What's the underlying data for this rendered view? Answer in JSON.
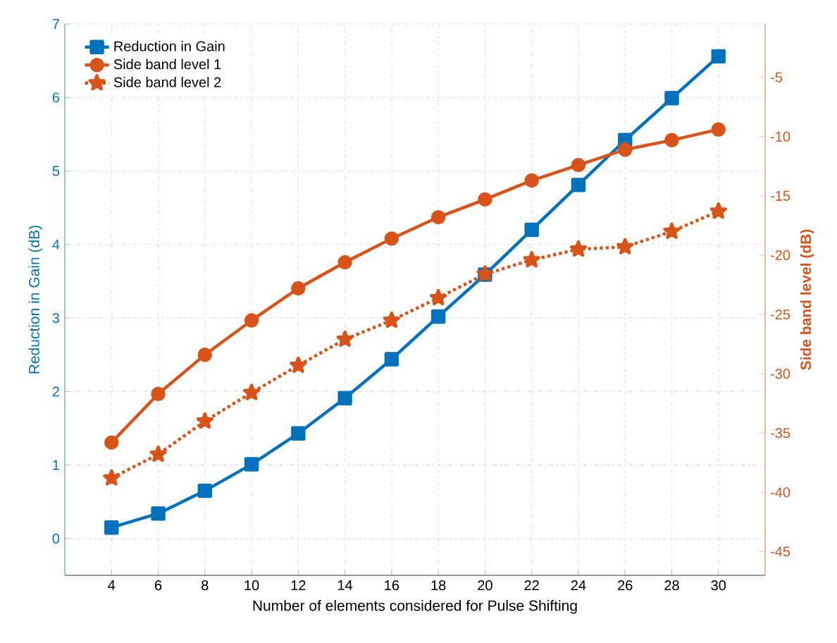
{
  "chart_data": {
    "type": "line",
    "xlabel": "Number of elements considered for Pulse Shifting",
    "ylabel": "Reduction in Gain (dB)",
    "y2label": "Side band level (dB)",
    "x": [
      4,
      6,
      8,
      10,
      12,
      14,
      16,
      18,
      20,
      22,
      24,
      26,
      28,
      30
    ],
    "xlim": [
      2,
      32
    ],
    "xticks": [
      4,
      6,
      8,
      10,
      12,
      14,
      16,
      18,
      20,
      22,
      24,
      26,
      28,
      30
    ],
    "ylim": [
      -0.5,
      7
    ],
    "yticks": [
      0,
      1,
      2,
      3,
      4,
      5,
      6,
      7
    ],
    "y2lim": [
      -47,
      -0.5
    ],
    "y2ticks": [
      -45,
      -40,
      -35,
      -30,
      -25,
      -20,
      -15,
      -10,
      -5
    ],
    "grid": true,
    "legend": "top left",
    "series": [
      {
        "name": "Reduction in Gain",
        "color": "#0072bd",
        "marker": "square",
        "line_style": "solid",
        "values": [
          0.15,
          0.34,
          0.65,
          1.01,
          1.43,
          1.91,
          2.44,
          3.02,
          3.59,
          4.2,
          4.81,
          5.42,
          5.99,
          6.56
        ]
      },
      {
        "name": "Side band level 1",
        "color": "#d95319",
        "marker": "circle",
        "line_style": "solid",
        "axis": "y2",
        "values": [
          -35.8,
          -31.7,
          -28.4,
          -25.5,
          -22.8,
          -20.6,
          -18.6,
          -16.8,
          -15.3,
          -13.7,
          -12.4,
          -11.1,
          -10.3,
          -9.4
        ]
      },
      {
        "name": "Side band level 2",
        "color": "#d95319",
        "marker": "star",
        "line_style": "dotted",
        "axis": "y2",
        "values": [
          -38.8,
          -36.8,
          -34.0,
          -31.6,
          -29.3,
          -27.1,
          -25.5,
          -23.6,
          -21.6,
          -20.4,
          -19.5,
          -19.3,
          -18.0,
          -16.3
        ]
      }
    ]
  }
}
